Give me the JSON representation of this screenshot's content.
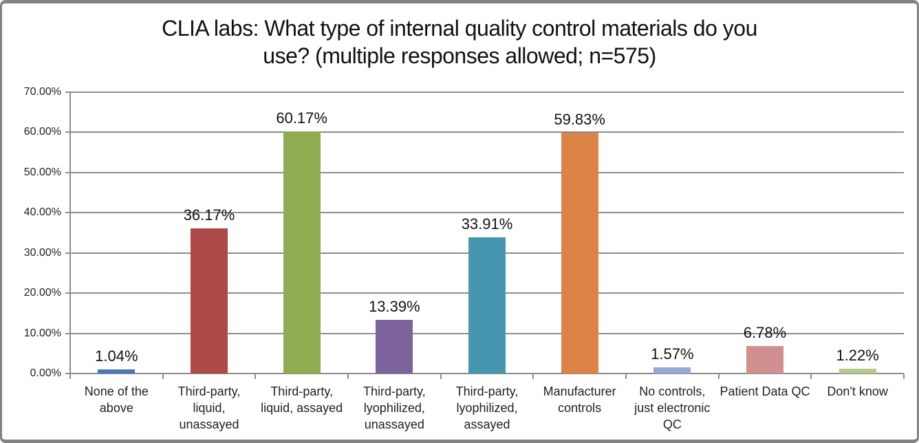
{
  "chart_data": {
    "type": "bar",
    "title": "CLIA labs: What type of internal quality control materials do you use? (multiple responses allowed; n=575)",
    "title_lines": [
      "CLIA labs: What type of internal quality control materials do you",
      "use? (multiple responses allowed; n=575)"
    ],
    "categories": [
      "None of the above",
      "Third-party, liquid, unassayed",
      "Third-party, liquid, assayed",
      "Third-party, lyophilized, unassayed",
      "Third-party, lyophilized, assayed",
      "Manufacturer controls",
      "No controls, just electronic QC",
      "Patient Data QC",
      "Don't know"
    ],
    "categories_wrapped": [
      [
        "None of the",
        "above"
      ],
      [
        "Third-party,",
        "liquid,",
        "unassayed"
      ],
      [
        "Third-party,",
        "liquid, assayed"
      ],
      [
        "Third-party,",
        "lyophilized,",
        "unassayed"
      ],
      [
        "Third-party,",
        "lyophilized,",
        "assayed"
      ],
      [
        "Manufacturer",
        "controls"
      ],
      [
        "No controls,",
        "just electronic",
        "QC"
      ],
      [
        "Patient Data QC"
      ],
      [
        "Don't know"
      ]
    ],
    "values": [
      1.04,
      36.17,
      60.17,
      13.39,
      33.91,
      59.83,
      1.57,
      6.78,
      1.22
    ],
    "data_labels": [
      "1.04%",
      "36.17%",
      "60.17%",
      "13.39%",
      "33.91%",
      "59.83%",
      "1.57%",
      "6.78%",
      "1.22%"
    ],
    "bar_colors": [
      "#4A7AB5",
      "#AC4A47",
      "#8FAC51",
      "#7D639C",
      "#4596AE",
      "#DB8446",
      "#93AAD4",
      "#D09092",
      "#B8CB8F"
    ],
    "xlabel": "",
    "ylabel": "",
    "ylim": [
      0,
      70
    ],
    "ytick_values": [
      0,
      10,
      20,
      30,
      40,
      50,
      60,
      70
    ],
    "ytick_labels": [
      "0.00%",
      "10.00%",
      "20.00%",
      "30.00%",
      "40.00%",
      "50.00%",
      "60.00%",
      "70.00%"
    ],
    "grid": true,
    "legend": "none",
    "colors": {
      "grid": "#8C8C8C",
      "axis": "#8C8C8C",
      "text": "#1F1F1F",
      "background": "#FFFFFF",
      "border": "#828282"
    }
  }
}
